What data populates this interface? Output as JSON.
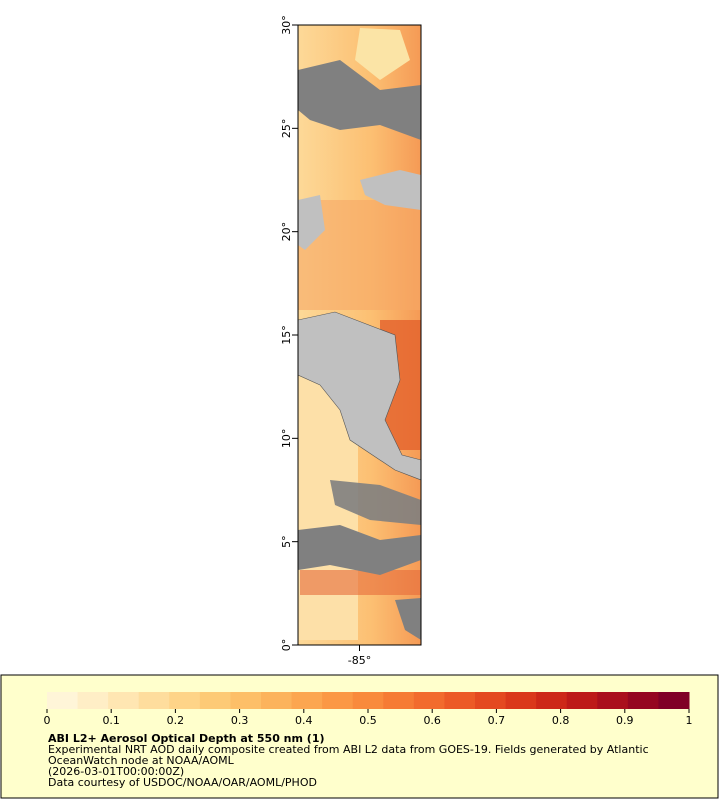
{
  "map_data": {
    "lat_ticks": [
      {
        "value": 0,
        "label": "0°"
      },
      {
        "value": 5,
        "label": "5°"
      },
      {
        "value": 10,
        "label": "10°"
      },
      {
        "value": 15,
        "label": "15°"
      },
      {
        "value": 20,
        "label": "20°"
      },
      {
        "value": 25,
        "label": "25°"
      },
      {
        "value": 30,
        "label": "30°"
      }
    ],
    "lat_range": [
      0,
      30
    ],
    "lon_range": [
      -88,
      -82
    ],
    "lon_ticks": [
      {
        "value": -85,
        "label": "-85°"
      }
    ]
  },
  "legend": {
    "title": "ABI L2+ Aerosol Optical Depth at 550 nm (1)",
    "description": [
      "Experimental NRT AOD daily composite created from ABI L2 data from GOES-19. Fields generated by Atlantic",
      "OceanWatch node at NOAA/AOML",
      "(2026-03-01T00:00:00Z)",
      "Data courtesy of USDOC/NOAA/OAR/AOML/PHOD"
    ],
    "range": [
      0,
      1
    ],
    "ticks": [
      0,
      0.1,
      0.2,
      0.3,
      0.4,
      0.5,
      0.6,
      0.7,
      0.8,
      0.9,
      1
    ],
    "colors": [
      "#fff5d8",
      "#ffeec6",
      "#ffe6b2",
      "#fedd9d",
      "#fed488",
      "#fdca76",
      "#fdbf68",
      "#fcb35c",
      "#fca650",
      "#fb9845",
      "#f98a3c",
      "#f67b34",
      "#f26b2d",
      "#ec5a26",
      "#e44920",
      "#da381b",
      "#cd2818",
      "#bd1a18",
      "#aa0f1c",
      "#950620",
      "#800026"
    ]
  }
}
